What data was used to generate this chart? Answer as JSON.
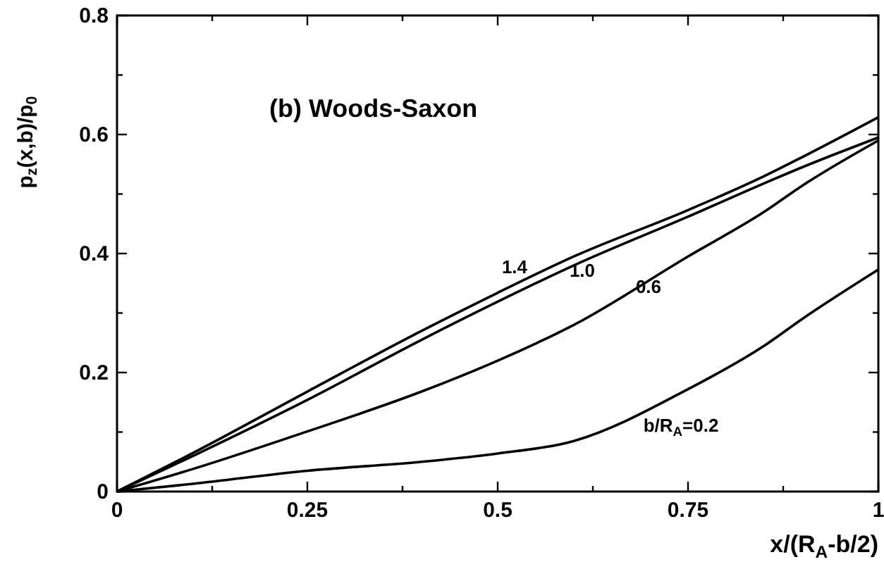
{
  "chart_data": {
    "type": "line",
    "xlabel": "x/(R$_{A}$-b/2)",
    "ylabel": "p$_{z}$(x,b)/p$_{0}$",
    "x": [
      0,
      0.1,
      0.25,
      0.4,
      0.5,
      0.6,
      0.75,
      0.85,
      0.9,
      1
    ],
    "series": [
      {
        "name": "1.4",
        "color": "#000000",
        "values": [
          0,
          0.065,
          0.168,
          0.27,
          0.334,
          0.395,
          0.473,
          0.53,
          0.562,
          0.629
        ]
      },
      {
        "name": "1.0",
        "color": "#000000",
        "values": [
          0,
          0.06,
          0.154,
          0.255,
          0.319,
          0.38,
          0.462,
          0.518,
          0.545,
          0.595
        ]
      },
      {
        "name": "0.6",
        "color": "#000000",
        "values": [
          0,
          0.038,
          0.101,
          0.168,
          0.22,
          0.28,
          0.395,
          0.47,
          0.514,
          0.59
        ]
      },
      {
        "name": "b/R$_{A}$=0.2",
        "color": "#000000",
        "values": [
          0,
          0.013,
          0.035,
          0.05,
          0.064,
          0.085,
          0.172,
          0.245,
          0.29,
          0.373
        ]
      }
    ],
    "xlim": [
      0,
      1
    ],
    "ylim": [
      0,
      0.8
    ],
    "xticks": [
      0,
      {
        "value": 0.125,
        "label": null
      },
      0.25,
      {
        "value": 0.375,
        "label": null
      },
      0.5,
      {
        "value": 0.625,
        "label": null
      },
      0.75,
      {
        "value": 0.875,
        "label": null
      },
      1
    ],
    "yticks": [
      0,
      {
        "value": 0.1,
        "label": null
      },
      0.2,
      {
        "value": 0.3,
        "label": null
      },
      0.4,
      {
        "value": 0.5,
        "label": null
      },
      0.6,
      {
        "value": 0.7,
        "label": null
      },
      0.8
    ],
    "grid": false,
    "marker": "none",
    "line_style": "solid",
    "annotations": [
      "(b) Woods-Saxon"
    ]
  }
}
